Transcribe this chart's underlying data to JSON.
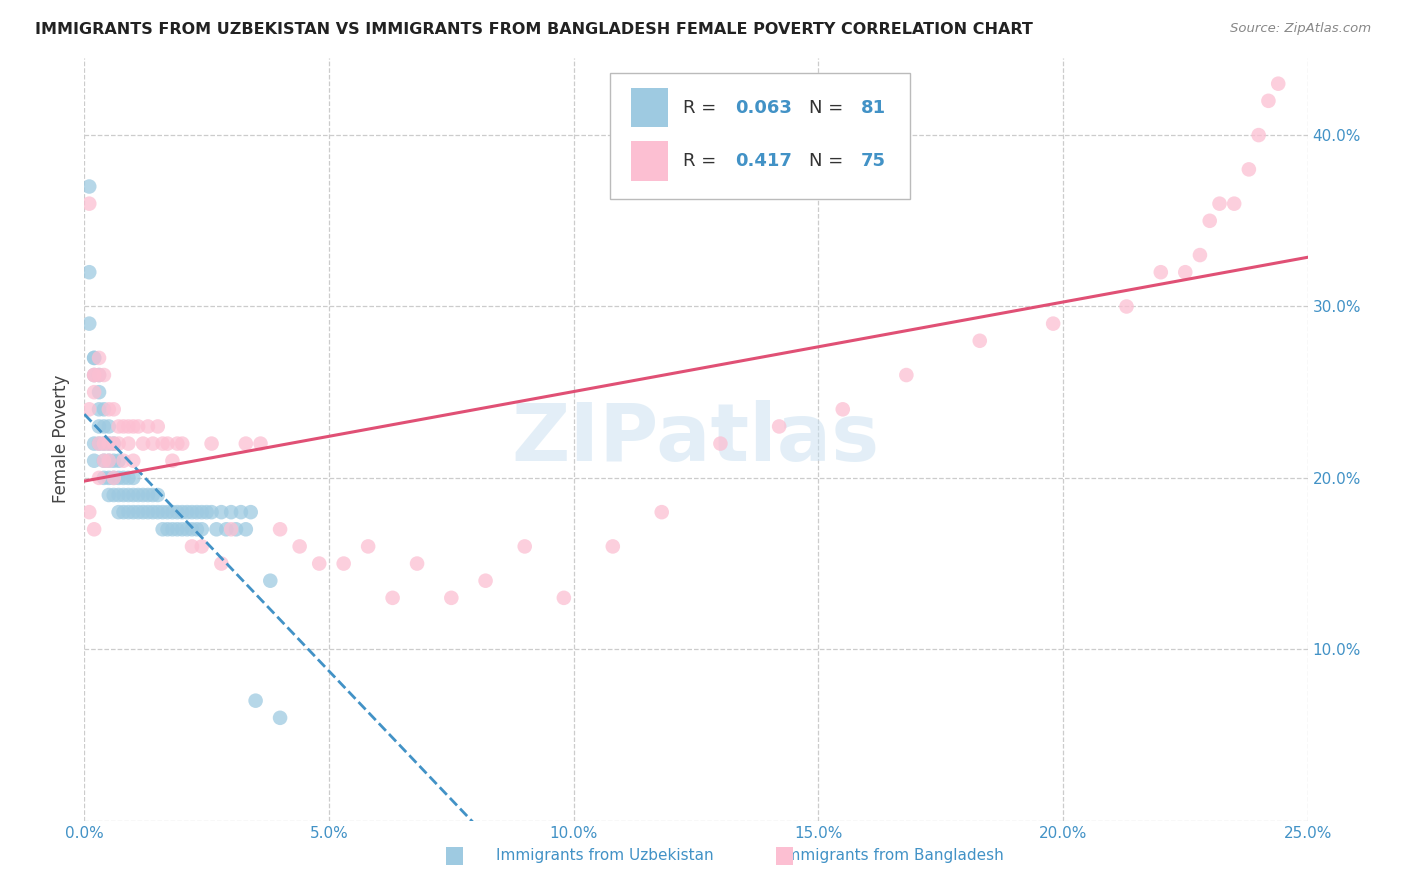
{
  "title": "IMMIGRANTS FROM UZBEKISTAN VS IMMIGRANTS FROM BANGLADESH FEMALE POVERTY CORRELATION CHART",
  "source": "Source: ZipAtlas.com",
  "ylabel": "Female Poverty",
  "color_blue": "#9ecae1",
  "color_pink": "#fcbfd2",
  "line_blue": "#4292c6",
  "line_pink": "#e05075",
  "xlim": [
    0.0,
    0.25
  ],
  "ylim": [
    0.0,
    0.445
  ],
  "watermark": "ZIPatlas",
  "uz_x": [
    0.001,
    0.001,
    0.001,
    0.002,
    0.002,
    0.002,
    0.002,
    0.002,
    0.003,
    0.003,
    0.003,
    0.003,
    0.003,
    0.004,
    0.004,
    0.004,
    0.004,
    0.004,
    0.005,
    0.005,
    0.005,
    0.005,
    0.005,
    0.006,
    0.006,
    0.006,
    0.006,
    0.007,
    0.007,
    0.007,
    0.007,
    0.008,
    0.008,
    0.008,
    0.009,
    0.009,
    0.009,
    0.01,
    0.01,
    0.01,
    0.011,
    0.011,
    0.012,
    0.012,
    0.013,
    0.013,
    0.014,
    0.014,
    0.015,
    0.015,
    0.016,
    0.016,
    0.017,
    0.017,
    0.018,
    0.018,
    0.019,
    0.019,
    0.02,
    0.02,
    0.021,
    0.021,
    0.022,
    0.022,
    0.023,
    0.023,
    0.024,
    0.024,
    0.025,
    0.026,
    0.027,
    0.028,
    0.029,
    0.03,
    0.031,
    0.032,
    0.033,
    0.034,
    0.035,
    0.038,
    0.04
  ],
  "uz_y": [
    0.37,
    0.32,
    0.29,
    0.27,
    0.27,
    0.26,
    0.22,
    0.21,
    0.26,
    0.25,
    0.24,
    0.23,
    0.22,
    0.24,
    0.23,
    0.22,
    0.21,
    0.2,
    0.23,
    0.22,
    0.21,
    0.2,
    0.19,
    0.22,
    0.21,
    0.2,
    0.19,
    0.21,
    0.2,
    0.19,
    0.18,
    0.2,
    0.19,
    0.18,
    0.2,
    0.19,
    0.18,
    0.2,
    0.19,
    0.18,
    0.19,
    0.18,
    0.19,
    0.18,
    0.19,
    0.18,
    0.19,
    0.18,
    0.19,
    0.18,
    0.18,
    0.17,
    0.18,
    0.17,
    0.18,
    0.17,
    0.18,
    0.17,
    0.18,
    0.17,
    0.18,
    0.17,
    0.18,
    0.17,
    0.18,
    0.17,
    0.18,
    0.17,
    0.18,
    0.18,
    0.17,
    0.18,
    0.17,
    0.18,
    0.17,
    0.18,
    0.17,
    0.18,
    0.07,
    0.14,
    0.06
  ],
  "bd_x": [
    0.001,
    0.001,
    0.001,
    0.002,
    0.002,
    0.002,
    0.002,
    0.003,
    0.003,
    0.003,
    0.003,
    0.004,
    0.004,
    0.004,
    0.005,
    0.005,
    0.005,
    0.006,
    0.006,
    0.006,
    0.007,
    0.007,
    0.008,
    0.008,
    0.009,
    0.009,
    0.01,
    0.01,
    0.011,
    0.012,
    0.013,
    0.014,
    0.015,
    0.016,
    0.017,
    0.018,
    0.019,
    0.02,
    0.022,
    0.024,
    0.026,
    0.028,
    0.03,
    0.033,
    0.036,
    0.04,
    0.044,
    0.048,
    0.053,
    0.058,
    0.063,
    0.068,
    0.075,
    0.082,
    0.09,
    0.098,
    0.108,
    0.118,
    0.13,
    0.142,
    0.155,
    0.168,
    0.183,
    0.198,
    0.213,
    0.22,
    0.225,
    0.228,
    0.23,
    0.232,
    0.235,
    0.238,
    0.24,
    0.242,
    0.244
  ],
  "bd_y": [
    0.36,
    0.24,
    0.18,
    0.26,
    0.26,
    0.25,
    0.17,
    0.27,
    0.26,
    0.22,
    0.2,
    0.26,
    0.22,
    0.21,
    0.24,
    0.22,
    0.21,
    0.24,
    0.22,
    0.2,
    0.23,
    0.22,
    0.23,
    0.21,
    0.23,
    0.22,
    0.23,
    0.21,
    0.23,
    0.22,
    0.23,
    0.22,
    0.23,
    0.22,
    0.22,
    0.21,
    0.22,
    0.22,
    0.16,
    0.16,
    0.22,
    0.15,
    0.17,
    0.22,
    0.22,
    0.17,
    0.16,
    0.15,
    0.15,
    0.16,
    0.13,
    0.15,
    0.13,
    0.14,
    0.16,
    0.13,
    0.16,
    0.18,
    0.22,
    0.23,
    0.24,
    0.26,
    0.28,
    0.29,
    0.3,
    0.32,
    0.32,
    0.33,
    0.35,
    0.36,
    0.36,
    0.38,
    0.4,
    0.42,
    0.43
  ]
}
